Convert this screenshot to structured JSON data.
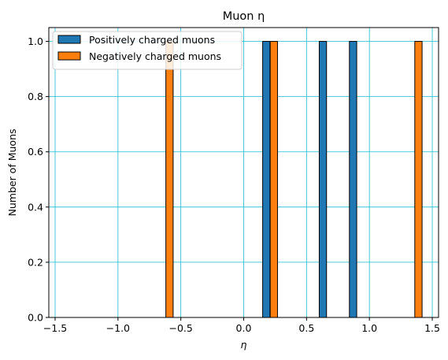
{
  "chart_data": {
    "type": "bar",
    "title": "Muon η",
    "xlabel": "η",
    "ylabel": "Number of Muons",
    "xlim": [
      -1.55,
      1.55
    ],
    "ylim": [
      0,
      1.05
    ],
    "x_ticks": [
      "−1.5",
      "−1.0",
      "−0.5",
      "0.0",
      "0.5",
      "1.0",
      "1.5"
    ],
    "x_tick_values": [
      -1.5,
      -1.0,
      -0.5,
      0.0,
      0.5,
      1.0,
      1.5
    ],
    "y_ticks": [
      "0.0",
      "0.2",
      "0.4",
      "0.6",
      "0.8",
      "1.0"
    ],
    "y_tick_values": [
      0.0,
      0.2,
      0.4,
      0.6,
      0.8,
      1.0
    ],
    "grid": true,
    "grid_color": "#17becf",
    "legend_position": "top-left",
    "bin_width": 0.058,
    "series": [
      {
        "name": "Positively charged muons",
        "color": "#1f77b4",
        "bars": [
          {
            "center": 0.18,
            "value": 1.0
          },
          {
            "center": 0.63,
            "value": 1.0
          },
          {
            "center": 0.87,
            "value": 1.0
          }
        ]
      },
      {
        "name": "Negatively charged muons",
        "color": "#ff7f0e",
        "bars": [
          {
            "center": -0.59,
            "value": 1.0
          },
          {
            "center": 0.24,
            "value": 1.0
          },
          {
            "center": 1.39,
            "value": 1.0
          }
        ]
      }
    ]
  }
}
